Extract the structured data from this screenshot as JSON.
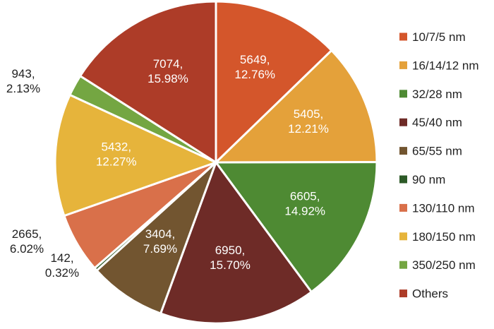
{
  "chart_data": {
    "type": "pie",
    "slices": [
      {
        "name": "10/7/5 nm",
        "value": 5649,
        "label_value": "5649,",
        "label_percent": "12.76%",
        "color": "#d4562b"
      },
      {
        "name": "16/14/12 nm",
        "value": 5405,
        "label_value": "5405,",
        "label_percent": "12.21%",
        "color": "#e4a13a"
      },
      {
        "name": "32/28 nm",
        "value": 6605,
        "label_value": "6605,",
        "label_percent": "14.92%",
        "color": "#4e8a33"
      },
      {
        "name": "45/40 nm",
        "value": 6950,
        "label_value": "6950,",
        "label_percent": "15.70%",
        "color": "#6e2b27"
      },
      {
        "name": "65/55 nm",
        "value": 3404,
        "label_value": "3404,",
        "label_percent": "7.69%",
        "color": "#725530"
      },
      {
        "name": "90 nm",
        "value": 142,
        "label_value": "142,",
        "label_percent": "0.32%",
        "color": "#2d5a27"
      },
      {
        "name": "130/110 nm",
        "value": 2665,
        "label_value": "2665,",
        "label_percent": "6.02%",
        "color": "#d9704a"
      },
      {
        "name": "180/150 nm",
        "value": 5432,
        "label_value": "5432,",
        "label_percent": "12.27%",
        "color": "#e6b43b"
      },
      {
        "name": "350/250 nm",
        "value": 943,
        "label_value": "943,",
        "label_percent": "2.13%",
        "color": "#74a642"
      },
      {
        "name": "Others",
        "value": 7074,
        "label_value": "7074,",
        "label_percent": "15.98%",
        "color": "#ad3c28"
      }
    ],
    "legend_position": "right"
  }
}
